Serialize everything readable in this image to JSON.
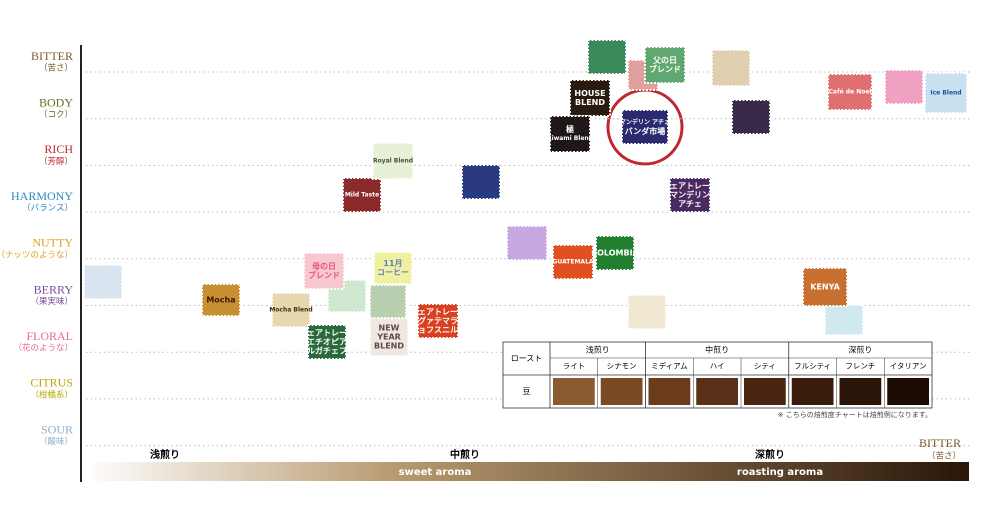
{
  "axis": {
    "labels": [
      {
        "name": "BITTER",
        "sub": "（苦さ）",
        "color": "#7a5a2a"
      },
      {
        "name": "BODY",
        "sub": "（コク）",
        "color": "#6b6b1e"
      },
      {
        "name": "RICH",
        "sub": "（芳醇）",
        "color": "#c0262c"
      },
      {
        "name": "HARMONY",
        "sub": "（バランス）",
        "color": "#2b8ac0"
      },
      {
        "name": "NUTTY",
        "sub": "（ナッツのような）",
        "color": "#e0a020"
      },
      {
        "name": "BERRY",
        "sub": "（果実味）",
        "color": "#7b4a9a"
      },
      {
        "name": "FLORAL",
        "sub": "（花のような）",
        "color": "#e86a8a"
      },
      {
        "name": "CITRUS",
        "sub": "（柑橘系）",
        "color": "#b8a800"
      },
      {
        "name": "SOUR",
        "sub": "（酸味）",
        "color": "#8ab0d0"
      }
    ]
  },
  "x_axis": {
    "labels": [
      "浅煎り",
      "中煎り",
      "深煎り"
    ],
    "bar": [
      "sweet aroma",
      "roasting aroma"
    ],
    "end": {
      "name": "BITTER",
      "sub": "（苦さ）"
    }
  },
  "table": {
    "header": "ロースト",
    "row_label": "豆",
    "groups": [
      {
        "name": "浅煎り",
        "items": [
          "ライト",
          "シナモン"
        ]
      },
      {
        "name": "中煎り",
        "items": [
          "ミディアム",
          "ハイ",
          "シティ"
        ]
      },
      {
        "name": "深煎り",
        "items": [
          "フルシティ",
          "フレンチ",
          "イタリアン"
        ]
      }
    ],
    "note": "※ こちらの焙煎度チャートは焙煎例になります。"
  },
  "stamps": [
    {
      "lines": [
        "Mocha"
      ]
    },
    {
      "lines": [
        "Mocha Blend"
      ]
    },
    {
      "lines": [
        "母の日",
        "ブレンド"
      ]
    },
    {
      "lines": [
        "11月",
        "コーヒー"
      ]
    },
    {
      "lines": [
        "Mild Taste"
      ]
    },
    {
      "lines": [
        "Royal Blend"
      ]
    },
    {
      "lines": [
        "フェアトレード",
        "エチオピア",
        "イルガチェフェ"
      ]
    },
    {
      "lines": [
        "NEW",
        "YEAR",
        "BLEND"
      ]
    },
    {
      "lines": [
        "フェアトレード",
        "グァテマラ",
        "チョフスニル村"
      ]
    },
    {
      "lines": [
        "GUATEMALA"
      ]
    },
    {
      "lines": [
        "COLOMBIA"
      ]
    },
    {
      "lines": [
        "HOUSE",
        "BLEND"
      ]
    },
    {
      "lines": [
        "極",
        "Kiwami Blend"
      ]
    },
    {
      "lines": [
        "父の日",
        "ブレンド"
      ]
    },
    {
      "lines": [
        "マンデリン アチェ",
        "バンダ市場"
      ]
    },
    {
      "lines": [
        "フェアトレード",
        "マンデリン",
        "アチェ"
      ]
    },
    {
      "lines": [
        "KENYA"
      ]
    },
    {
      "lines": [
        "Café de Noel"
      ]
    },
    {
      "lines": [
        "Ice Blend"
      ]
    }
  ]
}
